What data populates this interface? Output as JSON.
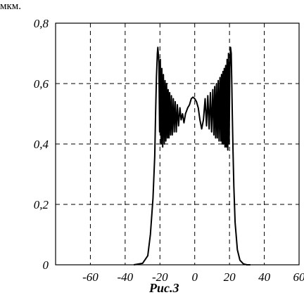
{
  "top_text": "мкм.",
  "caption": "Рис.3",
  "chart_data": {
    "type": "line",
    "xlim": [
      -80,
      60
    ],
    "ylim": [
      0,
      0.8
    ],
    "x_ticks": [
      -60,
      -40,
      -20,
      0,
      20,
      40,
      60
    ],
    "x_tick_labels": [
      "-60",
      "-40",
      "-20",
      "0",
      "20",
      "40",
      "60"
    ],
    "y_ticks": [
      0,
      0.2,
      0.4,
      0.6,
      0.8
    ],
    "y_tick_labels": [
      "0",
      "0,2",
      "0,4",
      "0,6",
      "0,8"
    ],
    "grid": true,
    "grid_style": "dashed",
    "line_color": "#000000",
    "series": [
      {
        "x": [
          -35,
          -30,
          -27,
          -25.5,
          -24,
          -23,
          -22.5,
          -22,
          -21.5,
          -21.2,
          -20.6,
          -20.2,
          -19.8,
          -19.3,
          -18.9,
          -18.4,
          -18,
          -17.5,
          -17.1,
          -16.6,
          -16.2,
          -15.7,
          -15.3,
          -14.8,
          -14.4,
          -13.9,
          -13.4,
          -12.9,
          -12.3,
          -11.8,
          -11.2,
          -10.6,
          -10,
          -9.3,
          -8.5,
          -7.8,
          -7,
          -6.2,
          -5.3,
          -4,
          -3,
          -2,
          -1,
          0,
          1,
          2,
          3,
          4,
          5,
          6,
          6.8,
          7.5,
          8.3,
          9,
          9.7,
          10.4,
          11,
          11.5,
          12,
          12.5,
          13,
          13.5,
          14,
          14.5,
          15,
          15.4,
          15.8,
          16.2,
          16.6,
          17,
          17.4,
          17.8,
          18.2,
          18.6,
          19,
          19.4,
          19.8,
          20.2,
          20.6,
          21,
          21.3,
          21.6,
          22,
          22.5,
          23.2,
          24.5,
          26,
          28,
          30,
          32
        ],
        "y": [
          0,
          0.005,
          0.03,
          0.1,
          0.22,
          0.36,
          0.5,
          0.62,
          0.7,
          0.72,
          0.67,
          0.44,
          0.68,
          0.4,
          0.65,
          0.39,
          0.63,
          0.4,
          0.61,
          0.41,
          0.6,
          0.42,
          0.58,
          0.42,
          0.57,
          0.43,
          0.56,
          0.43,
          0.55,
          0.44,
          0.54,
          0.44,
          0.53,
          0.46,
          0.52,
          0.48,
          0.5,
          0.47,
          0.5,
          0.52,
          0.53,
          0.55,
          0.555,
          0.55,
          0.54,
          0.52,
          0.48,
          0.45,
          0.48,
          0.55,
          0.46,
          0.56,
          0.45,
          0.57,
          0.44,
          0.58,
          0.43,
          0.59,
          0.42,
          0.6,
          0.42,
          0.61,
          0.41,
          0.62,
          0.41,
          0.63,
          0.4,
          0.64,
          0.4,
          0.65,
          0.39,
          0.66,
          0.39,
          0.68,
          0.38,
          0.7,
          0.4,
          0.65,
          0.72,
          0.7,
          0.6,
          0.5,
          0.38,
          0.26,
          0.14,
          0.05,
          0.015,
          0.003,
          0,
          0
        ]
      }
    ]
  }
}
